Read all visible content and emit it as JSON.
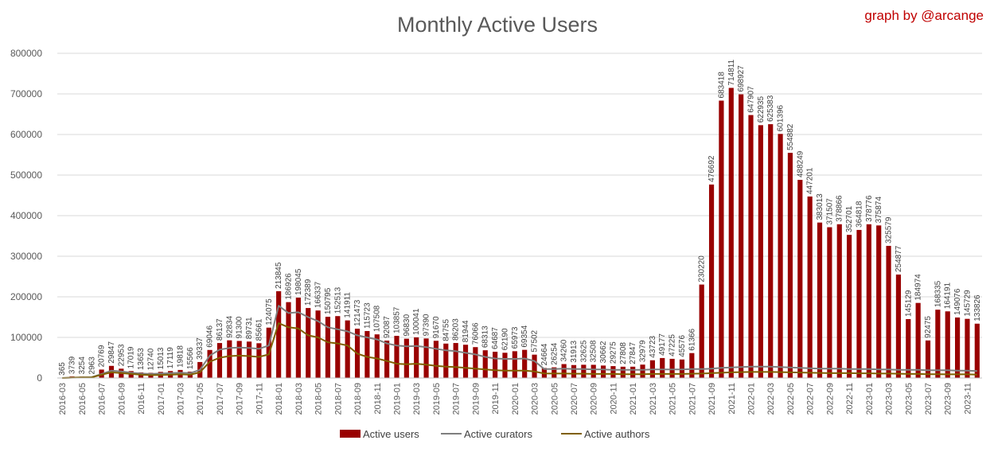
{
  "chart_data": {
    "type": "bar",
    "title": "Monthly Active Users",
    "credit": "graph by @arcange",
    "ylim": [
      0,
      800000
    ],
    "yticks": [
      0,
      100000,
      200000,
      300000,
      400000,
      500000,
      600000,
      700000,
      800000
    ],
    "grid": true,
    "legend_position": "bottom",
    "x_start": "2016-03",
    "x": [
      "2016-03",
      "2016-04",
      "2016-05",
      "2016-06",
      "2016-07",
      "2016-08",
      "2016-09",
      "2016-10",
      "2016-11",
      "2016-12",
      "2017-01",
      "2017-02",
      "2017-03",
      "2017-04",
      "2017-05",
      "2017-06",
      "2017-07",
      "2017-08",
      "2017-09",
      "2017-10",
      "2017-11",
      "2017-12",
      "2018-01",
      "2018-02",
      "2018-03",
      "2018-04",
      "2018-05",
      "2018-06",
      "2018-07",
      "2018-08",
      "2018-09",
      "2018-10",
      "2018-11",
      "2018-12",
      "2019-01",
      "2019-02",
      "2019-03",
      "2019-04",
      "2019-05",
      "2019-06",
      "2019-07",
      "2019-08",
      "2019-09",
      "2019-10",
      "2019-11",
      "2019-12",
      "2020-01",
      "2020-02",
      "2020-03",
      "2020-04",
      "2020-05",
      "2020-06",
      "2020-07",
      "2020-08",
      "2020-09",
      "2020-10",
      "2020-11",
      "2020-12",
      "2021-01",
      "2021-02",
      "2021-03",
      "2021-04",
      "2021-05",
      "2021-06",
      "2021-07",
      "2021-08",
      "2021-09",
      "2021-10",
      "2021-11",
      "2021-12",
      "2022-01",
      "2022-02",
      "2022-03",
      "2022-04",
      "2022-05",
      "2022-06",
      "2022-07",
      "2022-08",
      "2022-09",
      "2022-10",
      "2022-11",
      "2022-12",
      "2023-01",
      "2023-02",
      "2023-03",
      "2023-04",
      "2023-05",
      "2023-06",
      "2023-07",
      "2023-08",
      "2023-09",
      "2023-10",
      "2023-11",
      "2023-12"
    ],
    "series": [
      {
        "name": "Active users",
        "kind": "bar",
        "color": "#990000",
        "values": [
          365,
          3739,
          3254,
          2963,
          20769,
          29847,
          22953,
          17019,
          13653,
          12740,
          15013,
          17119,
          19818,
          15566,
          39337,
          69046,
          86137,
          92834,
          91300,
          89731,
          85661,
          124075,
          213845,
          186926,
          198045,
          172389,
          166337,
          150795,
          152513,
          141911,
          121473,
          115723,
          107508,
          92087,
          103857,
          96830,
          100041,
          97390,
          91670,
          84755,
          86203,
          81944,
          76066,
          68313,
          64687,
          62190,
          65973,
          69354,
          57502,
          24664,
          26254,
          34260,
          31913,
          32625,
          32508,
          30662,
          29275,
          27808,
          27847,
          32979,
          43723,
          49177,
          47225,
          45576,
          61366,
          230220,
          476692,
          683418,
          714811,
          698927,
          647907,
          622935,
          625383,
          601396,
          554882,
          488249,
          447201,
          383013,
          371507,
          378866,
          352701,
          364818,
          378776,
          375874,
          325579,
          254877,
          145129,
          184974,
          92475,
          168335,
          164191,
          149076,
          145729,
          133826
        ]
      },
      {
        "name": "Active curators",
        "kind": "line",
        "color": "#7f7f7f",
        "values": [
          0,
          1000,
          1500,
          2000,
          10000,
          18000,
          16000,
          13000,
          11000,
          10000,
          11000,
          12000,
          13000,
          12000,
          20000,
          55000,
          70000,
          74000,
          75000,
          74000,
          72000,
          80000,
          178000,
          160000,
          162000,
          150000,
          140000,
          125000,
          120000,
          115000,
          105000,
          100000,
          95000,
          85000,
          80000,
          78000,
          79000,
          76000,
          72000,
          68000,
          66000,
          62000,
          58000,
          52000,
          48000,
          47000,
          47000,
          48000,
          42000,
          22000,
          22000,
          23000,
          22000,
          22000,
          21000,
          21000,
          20000,
          20000,
          20000,
          20000,
          21000,
          21000,
          21000,
          21000,
          22000,
          22000,
          23000,
          25000,
          26000,
          27000,
          28000,
          28000,
          28000,
          27000,
          26000,
          25000,
          24000,
          23000,
          23000,
          23000,
          22000,
          22000,
          22000,
          21000,
          21000,
          20000,
          20000,
          20000,
          19000,
          19000,
          19000,
          18000,
          18000,
          17000
        ]
      },
      {
        "name": "Active authors",
        "kind": "line",
        "color": "#806000",
        "values": [
          0,
          800,
          1200,
          1500,
          8000,
          14000,
          12000,
          10000,
          8000,
          7000,
          7500,
          8000,
          9000,
          8000,
          14000,
          40000,
          50000,
          54000,
          55000,
          54000,
          52000,
          58000,
          135000,
          125000,
          122000,
          105000,
          100000,
          88000,
          85000,
          80000,
          60000,
          52000,
          48000,
          42000,
          35000,
          34000,
          35000,
          33000,
          30000,
          28000,
          27000,
          25000,
          23000,
          21000,
          19000,
          18000,
          18000,
          18000,
          16000,
          11000,
          11000,
          11000,
          10500,
          10500,
          10000,
          10000,
          10000,
          9500,
          9500,
          9500,
          10000,
          10000,
          10000,
          10000,
          10500,
          11000,
          12000,
          13000,
          14000,
          14500,
          15000,
          15000,
          15000,
          14500,
          14000,
          13500,
          13000,
          12500,
          12000,
          12000,
          12000,
          11500,
          11500,
          11000,
          11000,
          10500,
          10000,
          10000,
          9500,
          9500,
          9000,
          9000,
          9000,
          8500
        ]
      }
    ]
  }
}
